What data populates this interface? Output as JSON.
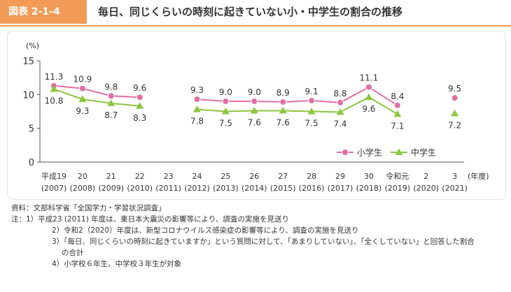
{
  "header": {
    "tag": "図表 2-1-4",
    "title": "毎日、同じくらいの時刻に起きていない小・中学生の割合の推移"
  },
  "chart_data": {
    "type": "line",
    "yunit": "(%)",
    "ylim": [
      0,
      15
    ],
    "yticks": [
      0,
      5,
      10,
      15
    ],
    "xunit": "(年度)",
    "categories": [
      "平成19 (2007)",
      "20 (2008)",
      "21 (2009)",
      "22 (2010)",
      "23 (2011)",
      "24 (2012)",
      "25 (2013)",
      "26 (2014)",
      "27 (2015)",
      "28 (2016)",
      "29 (2017)",
      "30 (2018)",
      "令和元 (2019)",
      "2 (2020)",
      "3 (2021)"
    ],
    "tick_top": [
      "平成19",
      "20",
      "21",
      "22",
      "23",
      "24",
      "25",
      "26",
      "27",
      "28",
      "29",
      "30",
      "令和元",
      "2",
      "3"
    ],
    "tick_bottom": [
      "(2007)",
      "(2008)",
      "(2009)",
      "(2010)",
      "(2011)",
      "(2012)",
      "(2013)",
      "(2014)",
      "(2015)",
      "(2016)",
      "(2017)",
      "(2018)",
      "(2019)",
      "(2020)",
      "(2021)"
    ],
    "series": [
      {
        "name": "小学生",
        "color": "#e06fa5",
        "marker": "circle",
        "values": [
          11.3,
          10.9,
          9.8,
          9.6,
          null,
          9.3,
          9.0,
          9.0,
          8.9,
          9.1,
          8.8,
          11.1,
          8.4,
          null,
          9.5
        ],
        "labels": [
          "11.3",
          "10.9",
          "9.8",
          "9.6",
          "",
          "9.3",
          "9.0",
          "9.0",
          "8.9",
          "9.1",
          "8.8",
          "11.1",
          "8.4",
          "",
          "9.5"
        ]
      },
      {
        "name": "中学生",
        "color": "#8cc63f",
        "marker": "triangle",
        "values": [
          10.8,
          9.3,
          8.7,
          8.3,
          null,
          7.8,
          7.5,
          7.6,
          7.6,
          7.5,
          7.4,
          9.6,
          7.1,
          null,
          7.2
        ],
        "labels": [
          "10.8",
          "9.3",
          "8.7",
          "8.3",
          "",
          "7.8",
          "7.5",
          "7.6",
          "7.6",
          "7.5",
          "7.4",
          "9.6",
          "7.1",
          "",
          "7.2"
        ]
      }
    ],
    "legend_position": "bottom-right",
    "grid": false
  },
  "notes": {
    "source": "資料：文部科学省「全国学力・学習状況調査」",
    "note1": "注：1）平成23 (2011) 年度は、東日本大震災の影響等により、調査の実施を見送り",
    "note2": "2）令和2（2020）年度は、新型コロナウイルス感染症の影響等により、調査の実施を見送り",
    "note3a": "3）「毎日、同じくらいの時刻に起きていますか」という質問に対して、「あまりしていない」、「全くしていない」と回答した割合",
    "note3b": "の合計",
    "note4": "4）小学校６年生、中学校３年生が対象"
  }
}
